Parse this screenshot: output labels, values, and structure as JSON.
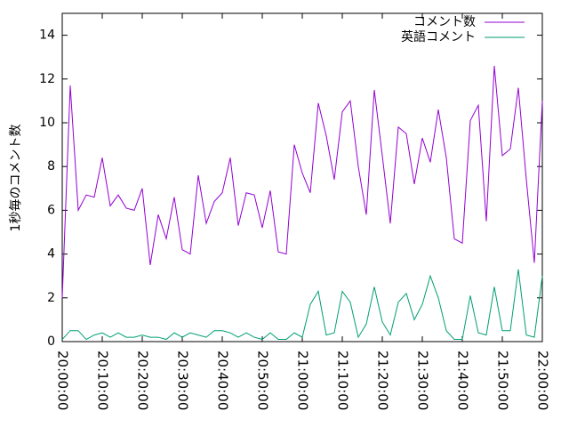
{
  "chart_data": {
    "type": "line",
    "ylabel": "1秒毎のコメント数",
    "x": [
      "20:00:00",
      "20:02:00",
      "20:04:00",
      "20:06:00",
      "20:08:00",
      "20:10:00",
      "20:12:00",
      "20:14:00",
      "20:16:00",
      "20:18:00",
      "20:20:00",
      "20:22:00",
      "20:24:00",
      "20:26:00",
      "20:28:00",
      "20:30:00",
      "20:32:00",
      "20:34:00",
      "20:36:00",
      "20:38:00",
      "20:40:00",
      "20:42:00",
      "20:44:00",
      "20:46:00",
      "20:48:00",
      "20:50:00",
      "20:52:00",
      "20:54:00",
      "20:56:00",
      "20:58:00",
      "21:00:00",
      "21:02:00",
      "21:04:00",
      "21:06:00",
      "21:08:00",
      "21:10:00",
      "21:12:00",
      "21:14:00",
      "21:16:00",
      "21:18:00",
      "21:20:00",
      "21:22:00",
      "21:24:00",
      "21:26:00",
      "21:28:00",
      "21:30:00",
      "21:32:00",
      "21:34:00",
      "21:36:00",
      "21:38:00",
      "21:40:00",
      "21:42:00",
      "21:44:00",
      "21:46:00",
      "21:48:00",
      "21:50:00",
      "21:52:00",
      "21:54:00",
      "21:56:00",
      "21:58:00",
      "22:00:00"
    ],
    "series": [
      {
        "name": "コメント数",
        "color": "#9400d3",
        "values": [
          2.0,
          11.7,
          6.0,
          6.7,
          6.6,
          8.4,
          6.2,
          6.7,
          6.1,
          6.0,
          7.0,
          3.5,
          5.8,
          4.7,
          6.6,
          4.2,
          4.0,
          7.6,
          5.4,
          6.4,
          6.8,
          8.4,
          5.3,
          6.8,
          6.7,
          5.2,
          6.9,
          4.1,
          4.0,
          9.0,
          7.7,
          6.8,
          10.9,
          9.4,
          7.4,
          10.5,
          11.0,
          8.0,
          5.8,
          11.5,
          8.5,
          5.4,
          9.8,
          9.5,
          7.2,
          9.3,
          8.2,
          10.6,
          8.4,
          4.7,
          4.5,
          10.1,
          10.8,
          5.5,
          12.6,
          8.5,
          8.8,
          11.6,
          7.4,
          3.6,
          11.0
        ]
      },
      {
        "name": "英語コメント",
        "color": "#009e73",
        "values": [
          0.1,
          0.5,
          0.5,
          0.1,
          0.3,
          0.4,
          0.2,
          0.4,
          0.2,
          0.2,
          0.3,
          0.2,
          0.2,
          0.1,
          0.4,
          0.2,
          0.4,
          0.3,
          0.2,
          0.5,
          0.5,
          0.4,
          0.2,
          0.4,
          0.2,
          0.1,
          0.4,
          0.1,
          0.1,
          0.4,
          0.2,
          1.7,
          2.3,
          0.3,
          0.4,
          2.3,
          1.8,
          0.2,
          0.8,
          2.5,
          0.9,
          0.3,
          1.8,
          2.2,
          1.0,
          1.7,
          3.0,
          2.0,
          0.5,
          0.1,
          0.1,
          2.1,
          0.4,
          0.3,
          2.5,
          0.5,
          0.5,
          3.3,
          0.3,
          0.2,
          3.0
        ]
      }
    ],
    "xlim": [
      "20:00:00",
      "22:00:00"
    ],
    "xticks": [
      "20:00:00",
      "20:10:00",
      "20:20:00",
      "20:30:00",
      "20:40:00",
      "20:50:00",
      "21:00:00",
      "21:10:00",
      "21:20:00",
      "21:30:00",
      "21:40:00",
      "21:50:00",
      "22:00:00"
    ],
    "ylim": [
      0,
      15
    ],
    "yticks": [
      0,
      2,
      4,
      6,
      8,
      10,
      12,
      14
    ],
    "legend": "top-right"
  }
}
